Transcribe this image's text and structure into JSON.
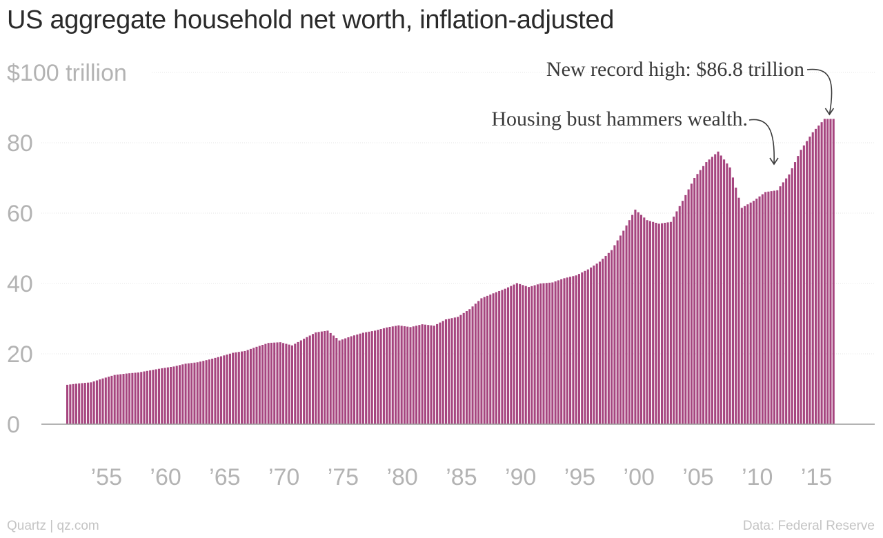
{
  "title": "US aggregate household net worth, inflation-adjusted",
  "footer": {
    "source_left": "Quartz | qz.com",
    "source_right": "Data: Federal Reserve"
  },
  "colors": {
    "bar": "#a6457f",
    "grid": "#e6e6e6",
    "axis_text": "#b3b3b3",
    "title": "#2a2a2a"
  },
  "chart_data": {
    "type": "bar",
    "title": "US aggregate household net worth, inflation-adjusted",
    "frequency": "quarterly",
    "start": "1952",
    "end": "2016",
    "ylim": [
      0,
      100
    ],
    "yticks": [
      {
        "value": 100,
        "label": "$100 trillion"
      },
      {
        "value": 80,
        "label": "80"
      },
      {
        "value": 60,
        "label": "60"
      },
      {
        "value": 40,
        "label": "40"
      },
      {
        "value": 20,
        "label": "20"
      },
      {
        "value": 0,
        "label": "0"
      }
    ],
    "xticks": [
      {
        "year": 1955,
        "label": "’55"
      },
      {
        "year": 1960,
        "label": "’60"
      },
      {
        "year": 1965,
        "label": "’65"
      },
      {
        "year": 1970,
        "label": "’70"
      },
      {
        "year": 1975,
        "label": "’75"
      },
      {
        "year": 1980,
        "label": "’80"
      },
      {
        "year": 1985,
        "label": "’85"
      },
      {
        "year": 1990,
        "label": "’90"
      },
      {
        "year": 1995,
        "label": "’95"
      },
      {
        "year": 2000,
        "label": "’00"
      },
      {
        "year": 2005,
        "label": "’05"
      },
      {
        "year": 2010,
        "label": "’10"
      },
      {
        "year": 2015,
        "label": "’15"
      }
    ],
    "grid": true,
    "units": "$ trillion",
    "annual_points": [
      [
        1952,
        11.2
      ],
      [
        1953,
        11.6
      ],
      [
        1954,
        11.9
      ],
      [
        1955,
        13.0
      ],
      [
        1956,
        14.0
      ],
      [
        1957,
        14.4
      ],
      [
        1958,
        14.7
      ],
      [
        1959,
        15.3
      ],
      [
        1960,
        15.9
      ],
      [
        1961,
        16.4
      ],
      [
        1962,
        17.2
      ],
      [
        1963,
        17.6
      ],
      [
        1964,
        18.4
      ],
      [
        1965,
        19.3
      ],
      [
        1966,
        20.3
      ],
      [
        1967,
        20.8
      ],
      [
        1968,
        22.0
      ],
      [
        1969,
        23.1
      ],
      [
        1970,
        23.3
      ],
      [
        1971,
        22.4
      ],
      [
        1972,
        24.3
      ],
      [
        1973,
        26.1
      ],
      [
        1974,
        26.6
      ],
      [
        1975,
        23.8
      ],
      [
        1976,
        25.0
      ],
      [
        1977,
        26.0
      ],
      [
        1978,
        26.6
      ],
      [
        1979,
        27.5
      ],
      [
        1980,
        28.1
      ],
      [
        1981,
        27.6
      ],
      [
        1982,
        28.4
      ],
      [
        1983,
        28.0
      ],
      [
        1984,
        29.8
      ],
      [
        1985,
        30.5
      ],
      [
        1986,
        32.7
      ],
      [
        1987,
        35.8
      ],
      [
        1988,
        37.2
      ],
      [
        1989,
        38.5
      ],
      [
        1990,
        40.1
      ],
      [
        1991,
        39.0
      ],
      [
        1992,
        40.0
      ],
      [
        1993,
        40.3
      ],
      [
        1994,
        41.5
      ],
      [
        1995,
        42.3
      ],
      [
        1996,
        44.0
      ],
      [
        1997,
        46.2
      ],
      [
        1998,
        49.5
      ],
      [
        1999,
        55.0
      ],
      [
        2000,
        61.0
      ],
      [
        2001,
        58.0
      ],
      [
        2002,
        57.0
      ],
      [
        2003,
        57.5
      ],
      [
        2004,
        63.5
      ],
      [
        2005,
        70.0
      ],
      [
        2006,
        74.5
      ],
      [
        2007,
        77.5
      ],
      [
        2008,
        73.0
      ],
      [
        2009,
        61.5
      ],
      [
        2010,
        63.5
      ],
      [
        2011,
        66.0
      ],
      [
        2012,
        66.5
      ],
      [
        2013,
        71.0
      ],
      [
        2014,
        78.0
      ],
      [
        2015,
        83.0
      ],
      [
        2016,
        86.8
      ]
    ],
    "annotations": [
      {
        "text": "New record high: $86.8 trillion",
        "year": 2016.5,
        "value": 86.8
      },
      {
        "text": "Housing bust hammers wealth.",
        "year": 2011.0,
        "value": 67.0
      }
    ]
  }
}
